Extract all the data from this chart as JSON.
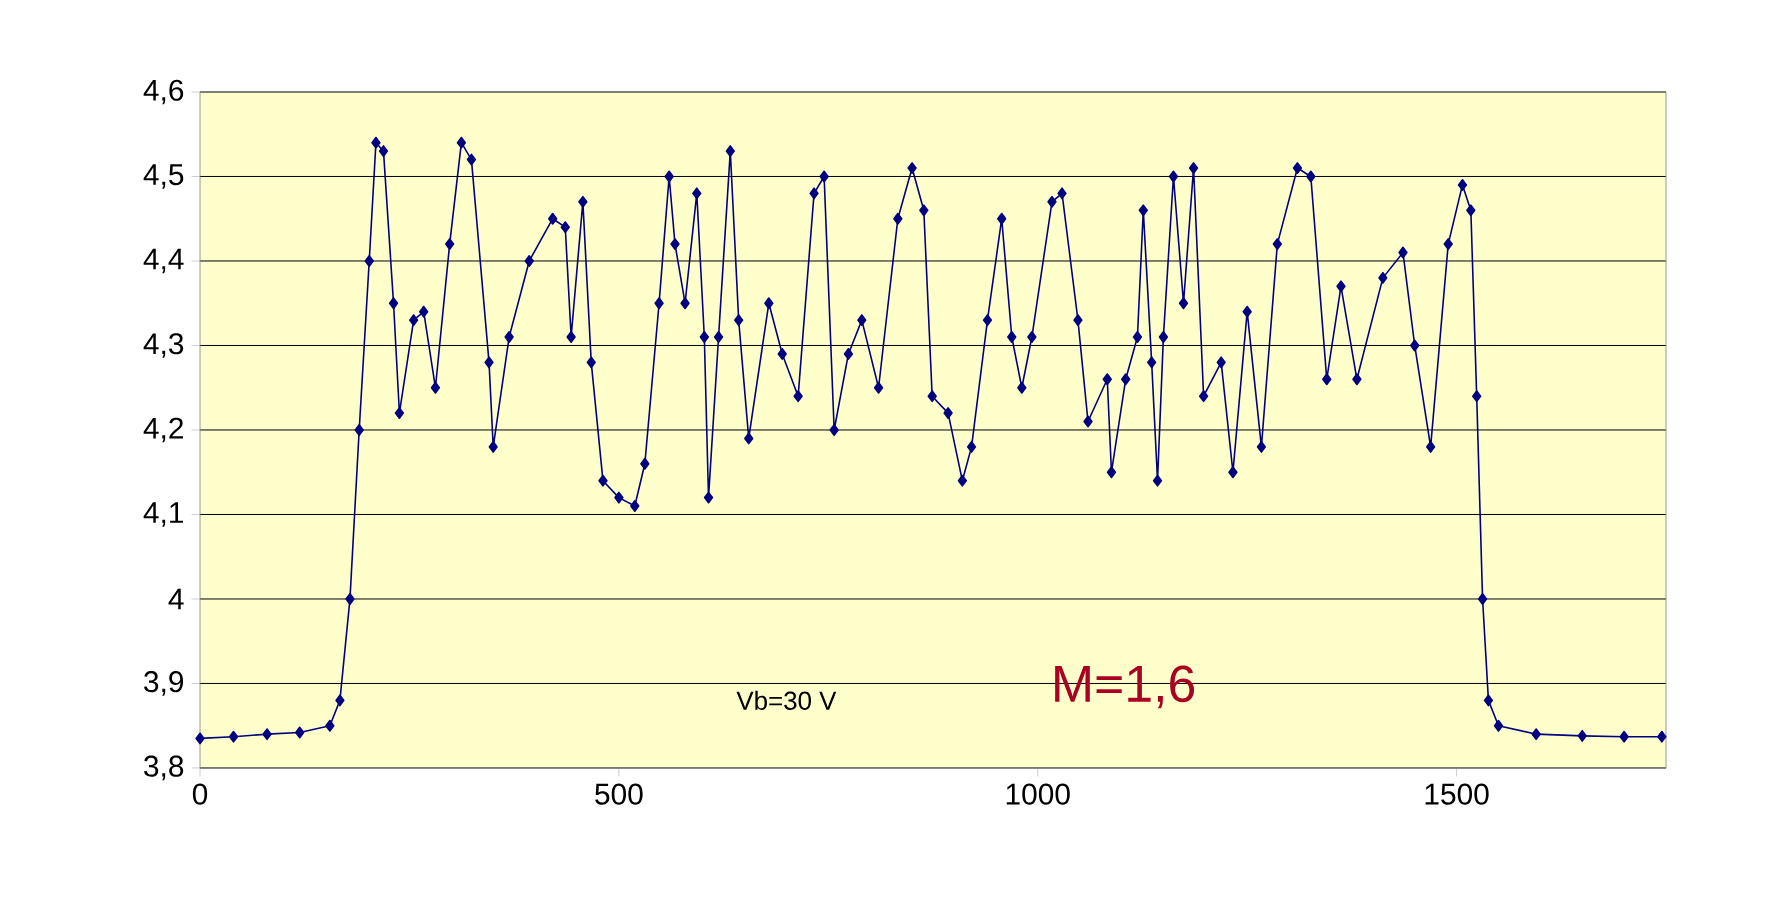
{
  "chart_data": {
    "type": "line",
    "xlim": [
      0,
      1750
    ],
    "ylim": [
      3.8,
      4.6
    ],
    "xticks": [
      0,
      500,
      1000,
      1500
    ],
    "yticks": [
      {
        "value": 3.8,
        "label": "3,8"
      },
      {
        "value": 3.9,
        "label": "3,9"
      },
      4,
      {
        "value": 4.1,
        "label": "4,1"
      },
      {
        "value": 4.2,
        "label": "4,2"
      },
      {
        "value": 4.3,
        "label": "4,3"
      },
      {
        "value": 4.4,
        "label": "4,4"
      },
      {
        "value": 4.5,
        "label": "4,5"
      },
      {
        "value": 4.6,
        "label": "4,6"
      }
    ],
    "grid": "y",
    "marker": "diamond",
    "line_style": "solid",
    "annotations": [
      "Vb=30 V",
      "M=1,6"
    ],
    "series": [
      {
        "color": "#000080",
        "x": [
          0,
          40,
          80,
          119,
          155,
          167,
          179,
          190,
          202,
          210,
          219,
          231,
          238,
          255,
          267,
          281,
          298,
          312,
          324,
          345,
          350,
          369,
          393,
          421,
          436,
          443,
          457,
          467,
          481,
          500,
          519,
          531,
          548,
          560,
          567,
          579,
          593,
          602,
          607,
          619,
          633,
          643,
          655,
          679,
          695,
          714,
          733,
          745,
          757,
          774,
          790,
          810,
          833,
          850,
          864,
          874,
          893,
          910,
          921,
          940,
          957,
          969,
          981,
          993,
          1017,
          1029,
          1048,
          1060,
          1083,
          1088,
          1105,
          1119,
          1126,
          1136,
          1143,
          1150,
          1162,
          1174,
          1186,
          1198,
          1219,
          1233,
          1250,
          1267,
          1286,
          1310,
          1326,
          1345,
          1362,
          1381,
          1412,
          1436,
          1450,
          1469,
          1490,
          1507,
          1517,
          1524,
          1531,
          1538,
          1550,
          1595,
          1650,
          1700,
          1745
        ],
        "values": [
          3.835,
          3.837,
          3.84,
          3.842,
          3.85,
          3.88,
          4.0,
          4.2,
          4.4,
          4.54,
          4.53,
          4.35,
          4.22,
          4.33,
          4.34,
          4.25,
          4.42,
          4.54,
          4.52,
          4.28,
          4.18,
          4.31,
          4.4,
          4.45,
          4.44,
          4.31,
          4.47,
          4.28,
          4.14,
          4.12,
          4.11,
          4.16,
          4.35,
          4.5,
          4.42,
          4.35,
          4.48,
          4.31,
          4.12,
          4.31,
          4.53,
          4.33,
          4.19,
          4.35,
          4.29,
          4.24,
          4.48,
          4.5,
          4.2,
          4.29,
          4.33,
          4.25,
          4.45,
          4.51,
          4.46,
          4.24,
          4.22,
          4.14,
          4.18,
          4.33,
          4.45,
          4.31,
          4.25,
          4.31,
          4.47,
          4.48,
          4.33,
          4.21,
          4.26,
          4.15,
          4.26,
          4.31,
          4.46,
          4.28,
          4.14,
          4.31,
          4.5,
          4.35,
          4.51,
          4.24,
          4.28,
          4.15,
          4.34,
          4.18,
          4.42,
          4.51,
          4.5,
          4.26,
          4.37,
          4.26,
          4.38,
          4.41,
          4.3,
          4.18,
          4.42,
          4.49,
          4.46,
          4.24,
          4.0,
          3.88,
          3.85,
          3.84,
          3.838,
          3.837,
          3.837
        ]
      }
    ]
  }
}
